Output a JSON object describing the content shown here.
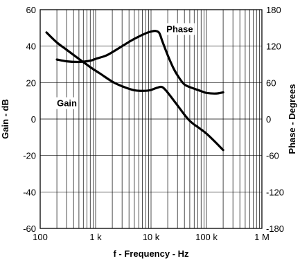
{
  "chart_data": {
    "type": "line",
    "title": "",
    "xlabel": "f - Frequency - Hz",
    "ylabel": "Gain - dB",
    "y2label": "Phase - Degrees",
    "xscale": "log",
    "xlim": [
      100,
      1000000
    ],
    "ylim": [
      -60,
      60
    ],
    "y2lim": [
      -180,
      180
    ],
    "grid": true,
    "xticks": [
      {
        "value": 100,
        "label": "100"
      },
      {
        "value": 1000,
        "label": "1 k"
      },
      {
        "value": 10000,
        "label": "10 k"
      },
      {
        "value": 100000,
        "label": "100 k"
      },
      {
        "value": 1000000,
        "label": "1 M"
      }
    ],
    "yticks": [
      {
        "value": 60,
        "label": "60"
      },
      {
        "value": 40,
        "label": "40"
      },
      {
        "value": 20,
        "label": "20"
      },
      {
        "value": 0,
        "label": "0"
      },
      {
        "value": -20,
        "label": "-20"
      },
      {
        "value": -40,
        "label": "-40"
      },
      {
        "value": -60,
        "label": "-60"
      }
    ],
    "y2ticks": [
      {
        "value": 180,
        "label": "180"
      },
      {
        "value": 120,
        "label": "120"
      },
      {
        "value": 60,
        "label": "60"
      },
      {
        "value": 0,
        "label": "0"
      },
      {
        "value": -60,
        "label": "-60"
      },
      {
        "value": -120,
        "label": "-120"
      },
      {
        "value": -180,
        "label": "-180"
      }
    ],
    "series": [
      {
        "name": "Gain",
        "axis": "left",
        "x": [
          130,
          200,
          300,
          500,
          800,
          1200,
          2000,
          3000,
          5000,
          8000,
          10000,
          13000,
          16000,
          20000,
          30000,
          50000,
          100000,
          200000
        ],
        "y": [
          47.5,
          42,
          38,
          33,
          28.5,
          25,
          20.5,
          18,
          15.8,
          15.5,
          16,
          17.2,
          17.5,
          14.5,
          7.5,
          -1,
          -8,
          -17
        ]
      },
      {
        "name": "Phase",
        "axis": "right",
        "x": [
          200,
          300,
          500,
          800,
          1000,
          1500,
          2000,
          3000,
          5000,
          8000,
          10000,
          12000,
          14000,
          16000,
          20000,
          25000,
          30000,
          40000,
          60000,
          80000,
          100000,
          150000,
          200000
        ],
        "y": [
          98,
          95,
          94,
          96,
          99,
          104,
          110,
          120,
          132,
          141,
          144,
          145,
          142,
          128,
          105,
          85,
          72,
          57,
          50,
          46,
          43,
          42,
          44
        ]
      }
    ],
    "annotations": [
      {
        "text": "Phase",
        "near_series": "Phase"
      },
      {
        "text": "Gain",
        "near_series": "Gain"
      }
    ]
  }
}
